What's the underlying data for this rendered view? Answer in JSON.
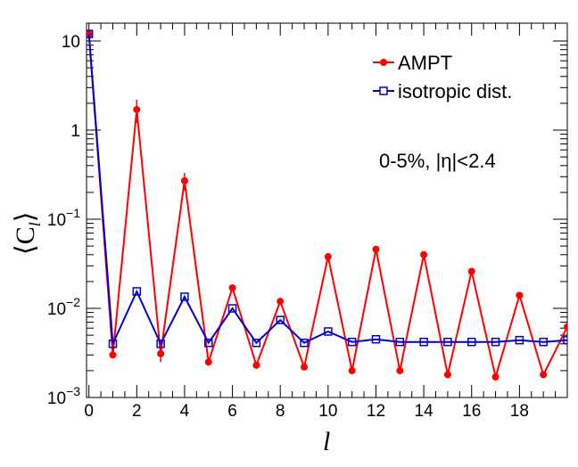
{
  "chart_data": {
    "type": "line",
    "title": "",
    "xlabel": "l",
    "ylabel_prefix": "⟨C",
    "ylabel_sub": "l",
    "ylabel_suffix": "⟩",
    "xlim": [
      -0.1,
      20
    ],
    "ylim": [
      0.001,
      15.85
    ],
    "log_y": true,
    "x_ticks": [
      0,
      2,
      4,
      6,
      8,
      10,
      12,
      14,
      16,
      18
    ],
    "y_ticks": [
      {
        "value": 10,
        "base": "10",
        "exp": ""
      },
      {
        "value": 1,
        "base": "1",
        "exp": ""
      },
      {
        "value": 0.1,
        "base": "10",
        "exp": "−1"
      },
      {
        "value": 0.01,
        "base": "10",
        "exp": "−2"
      },
      {
        "value": 0.001,
        "base": "10",
        "exp": "−3"
      }
    ],
    "annotation": "0-5%, |η|<2.4",
    "legend_position": "top-right",
    "series": [
      {
        "name": "AMPT",
        "color": "#ff0000",
        "marker": "filled-circle",
        "x": [
          0,
          1,
          2,
          3,
          4,
          5,
          6,
          7,
          8,
          9,
          10,
          11,
          12,
          13,
          14,
          15,
          16,
          17,
          18,
          19,
          20
        ],
        "y": [
          12,
          0.003,
          1.7,
          0.0031,
          0.27,
          0.0025,
          0.017,
          0.0023,
          0.012,
          0.0022,
          0.038,
          0.002,
          0.046,
          0.002,
          0.04,
          0.0018,
          0.026,
          0.0017,
          0.014,
          0.0018,
          0.0062
        ],
        "err": [
          0,
          0,
          0.5,
          0.0006,
          0.06,
          0,
          0,
          0,
          0,
          0,
          0,
          0,
          0,
          0,
          0,
          0,
          0,
          0,
          0,
          0,
          0
        ]
      },
      {
        "name": "isotropic dist.",
        "color": "#0000cc",
        "marker": "open-square",
        "x": [
          0,
          1,
          2,
          3,
          4,
          5,
          6,
          7,
          8,
          9,
          10,
          11,
          12,
          13,
          14,
          15,
          16,
          17,
          18,
          19,
          20
        ],
        "y": [
          12,
          0.004,
          0.0155,
          0.004,
          0.0135,
          0.0041,
          0.01,
          0.0041,
          0.0074,
          0.0041,
          0.0055,
          0.0042,
          0.0045,
          0.0042,
          0.0042,
          0.0042,
          0.0042,
          0.0042,
          0.0044,
          0.0042,
          0.0044
        ]
      }
    ]
  }
}
